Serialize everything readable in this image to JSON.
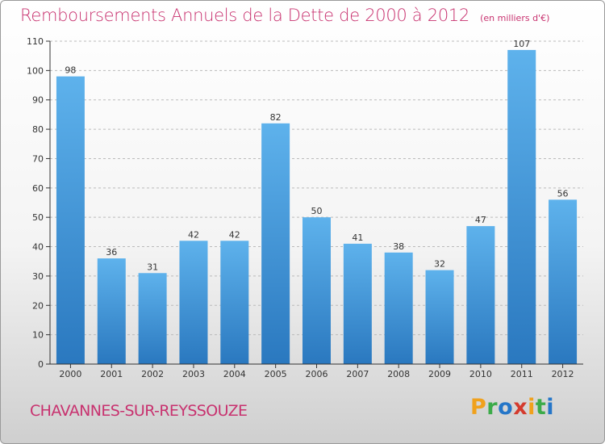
{
  "chart_data": {
    "type": "bar",
    "title": "Remboursements Annuels de la Dette de 2000 à 2012",
    "unit_note": "(en milliers d'€)",
    "categories": [
      "2000",
      "2001",
      "2002",
      "2003",
      "2004",
      "2005",
      "2006",
      "2007",
      "2008",
      "2009",
      "2010",
      "2011",
      "2012"
    ],
    "values": [
      98,
      36,
      31,
      42,
      42,
      82,
      50,
      41,
      38,
      32,
      47,
      107,
      56
    ],
    "ylim": [
      0,
      110
    ],
    "yticks": [
      0,
      10,
      20,
      30,
      40,
      50,
      60,
      70,
      80,
      90,
      100,
      110
    ],
    "xlabel": "",
    "ylabel": "",
    "grid": true,
    "bar_color": "#4a9fe0",
    "bar_color_dark": "#2a78bf"
  },
  "footer": {
    "city": "CHAVANNES-SUR-REYSSOUZE",
    "logo_text": "Proxiti",
    "logo_colors": [
      "#f0a11c",
      "#3cab49",
      "#2576c8",
      "#d43b2e",
      "#f0a11c",
      "#3cab49",
      "#2576c8"
    ]
  },
  "colors": {
    "accent": "#c8326f",
    "axis": "#333333",
    "grid": "#bbbbbb"
  }
}
